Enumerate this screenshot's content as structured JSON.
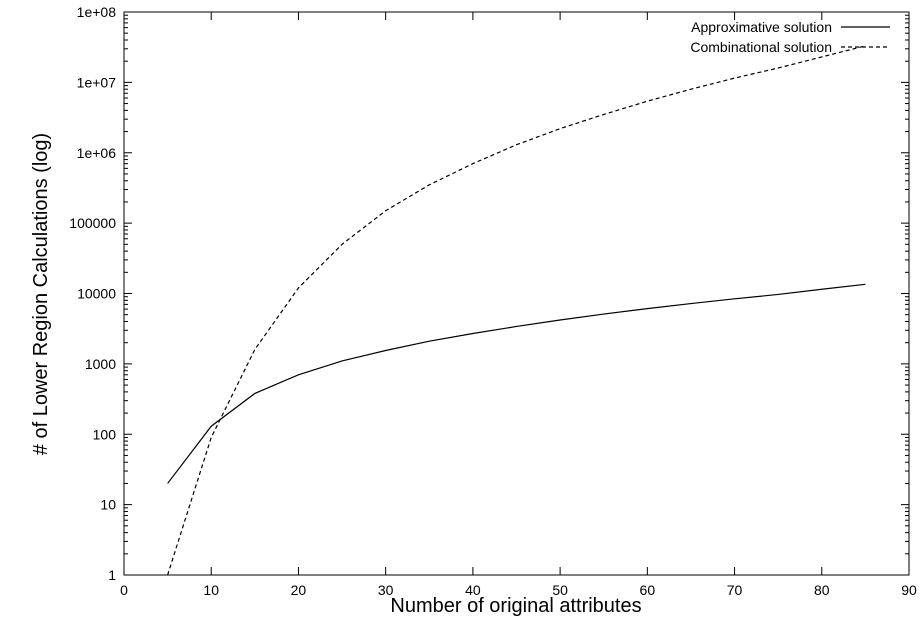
{
  "chart_data": {
    "type": "line",
    "xlabel": "Number of original attributes",
    "ylabel": "# of Lower Region Calculations (log)",
    "xlim": [
      0,
      90
    ],
    "ylim": [
      1,
      100000000
    ],
    "yscale": "log",
    "x_ticks": [
      "0",
      "10",
      "20",
      "30",
      "40",
      "50",
      "60",
      "70",
      "80",
      "90"
    ],
    "y_ticks": [
      "1",
      "10",
      "100",
      "1000",
      "10000",
      "100000",
      "1e+06",
      "1e+07",
      "1e+08"
    ],
    "grid": false,
    "legend_position": "top-right",
    "x": [
      5,
      10,
      15,
      20,
      25,
      30,
      35,
      40,
      45,
      50,
      55,
      60,
      65,
      70,
      75,
      80,
      85
    ],
    "series": [
      {
        "name": "Approximative solution",
        "style": "solid",
        "values": [
          20,
          130,
          380,
          700,
          1100,
          1550,
          2100,
          2700,
          3400,
          4200,
          5100,
          6100,
          7200,
          8400,
          9700,
          11500,
          13500
        ]
      },
      {
        "name": "Combinational solution",
        "style": "dashed",
        "values": [
          1,
          90,
          1600,
          12000,
          50000,
          150000,
          350000,
          700000,
          1300000,
          2200000,
          3500000,
          5400000,
          8000000,
          11500000,
          16000000,
          23000000,
          33000000
        ]
      }
    ]
  }
}
